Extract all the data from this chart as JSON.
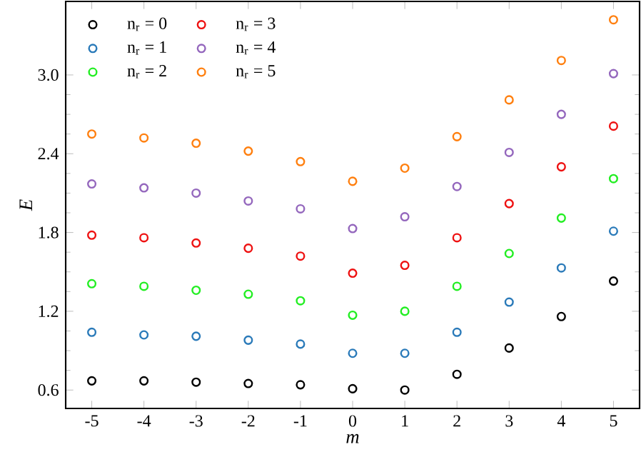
{
  "chart_data": {
    "type": "scatter",
    "xlabel": "m",
    "ylabel": "E",
    "x": [
      -5,
      -4,
      -3,
      -2,
      -1,
      0,
      1,
      2,
      3,
      4,
      5
    ],
    "series": [
      {
        "name": "n$_{r}$ = 0",
        "color": "#000000",
        "values": [
          0.67,
          0.67,
          0.66,
          0.65,
          0.64,
          0.61,
          0.6,
          0.72,
          0.92,
          1.16,
          1.43
        ]
      },
      {
        "name": "n$_{r}$ = 1",
        "color": "#2a7ab9",
        "values": [
          1.04,
          1.02,
          1.01,
          0.98,
          0.95,
          0.88,
          0.88,
          1.04,
          1.27,
          1.53,
          1.81
        ]
      },
      {
        "name": "n$_{r}$ = 2",
        "color": "#22ee22",
        "values": [
          1.41,
          1.39,
          1.36,
          1.33,
          1.28,
          1.17,
          1.2,
          1.39,
          1.64,
          1.91,
          2.21
        ]
      },
      {
        "name": "n$_{r}$ = 3",
        "color": "#ee1111",
        "values": [
          1.78,
          1.76,
          1.72,
          1.68,
          1.62,
          1.49,
          1.55,
          1.76,
          2.02,
          2.3,
          2.61
        ]
      },
      {
        "name": "n$_{r}$ = 4",
        "color": "#9467bd",
        "values": [
          2.17,
          2.14,
          2.1,
          2.04,
          1.98,
          1.83,
          1.92,
          2.15,
          2.41,
          2.7,
          3.01
        ]
      },
      {
        "name": "n$_{r}$ = 5",
        "color": "#ff7f0e",
        "values": [
          2.55,
          2.52,
          2.48,
          2.42,
          2.34,
          2.19,
          2.29,
          2.53,
          2.81,
          3.11,
          3.42
        ]
      }
    ],
    "xlim": [
      -5.5,
      5.5
    ],
    "ylim": [
      0.46,
      3.56
    ],
    "xticks": [
      -5,
      -4,
      -3,
      -2,
      -1,
      0,
      1,
      2,
      3,
      4,
      5
    ],
    "yticks": [
      0.6,
      1.2,
      1.8,
      2.4,
      {
        "value": 3,
        "label": "3.0"
      }
    ],
    "marker": "circle",
    "legend": "top left",
    "grid": false
  }
}
